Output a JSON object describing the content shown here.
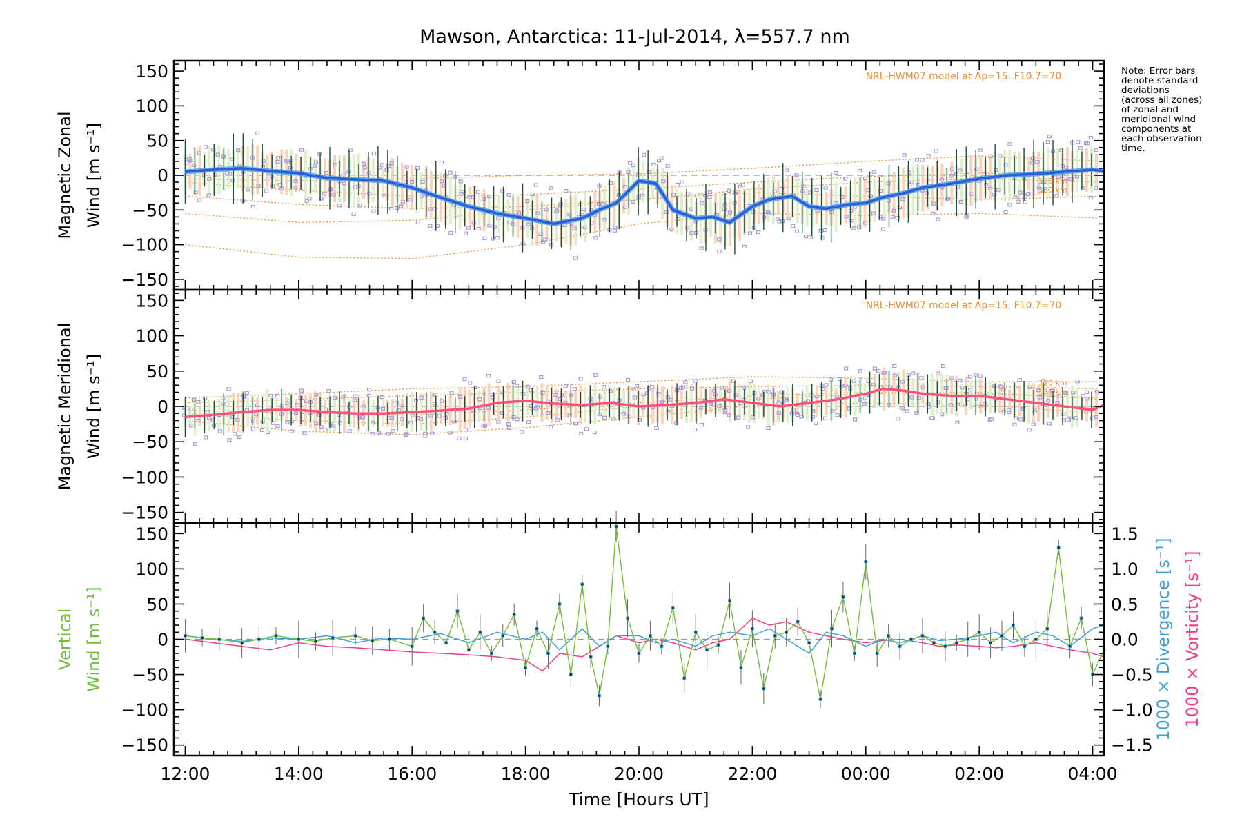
{
  "title": "Mawson, Antarctica: 11-Jul-2014, λ=557.7 nm",
  "note_lines": [
    "Note: Error bars",
    "denote standard",
    "deviations",
    "(across all zones)",
    "of zonal and",
    "meridional wind",
    "components at",
    "each observation",
    "time."
  ],
  "colors": {
    "zonal_line": "#2f5bd9",
    "zonal_light": "#4aa3e8",
    "meridional_line": "#ff4f7b",
    "vertical_line": "#6fbf3a",
    "divergence": "#3fa0d6",
    "vorticity": "#ef3f86",
    "model": "#f08a2a",
    "zone_points": "#a99ad8",
    "error_bar": "#1a4f3a"
  },
  "chart_data": [
    {
      "type": "line",
      "panel": "zonal",
      "ylabel_lines": [
        "Magnetic Zonal",
        "Wind [m s⁻¹]"
      ],
      "ylim": [
        -165,
        165
      ],
      "yticks": [
        -150,
        -100,
        -50,
        0,
        50,
        100,
        150
      ],
      "xlim": [
        11.8,
        28.2
      ],
      "annotation": "NRL-HWM07 model at Ap=15, F10.7=70",
      "model_labels": [
        "120 km",
        "130 km"
      ],
      "series": [
        {
          "x": [
            12,
            12.5,
            13,
            13.5,
            14,
            14.5,
            15,
            15.5,
            16,
            16.5,
            17,
            17.5,
            18,
            18.5,
            19,
            19.3,
            19.6,
            20,
            20.3,
            20.6,
            21,
            21.3,
            21.6,
            22,
            22.3,
            22.7,
            23,
            23.3,
            23.7,
            24,
            24.3,
            24.7,
            25,
            25.5,
            26,
            26.5,
            27,
            27.5,
            28,
            28.2
          ],
          "values": [
            5,
            8,
            10,
            6,
            3,
            -4,
            -6,
            -8,
            -18,
            -32,
            -45,
            -55,
            -62,
            -70,
            -62,
            -50,
            -40,
            -8,
            -12,
            -50,
            -62,
            -60,
            -68,
            -45,
            -35,
            -30,
            -45,
            -48,
            -42,
            -40,
            -32,
            -25,
            -18,
            -12,
            -5,
            0,
            2,
            5,
            8,
            6
          ]
        }
      ],
      "models": [
        {
          "x": [
            12,
            14,
            16,
            18,
            20,
            22,
            24,
            26,
            28.2
          ],
          "values": [
            -30,
            -42,
            -48,
            -45,
            -35,
            -20,
            -10,
            -5,
            -10
          ]
        },
        {
          "x": [
            12,
            14,
            16,
            18,
            20,
            22,
            24,
            26,
            28.2
          ],
          "values": [
            -10,
            -22,
            -30,
            -28,
            -20,
            -10,
            -2,
            3,
            0
          ]
        },
        {
          "x": [
            12,
            14,
            16,
            18,
            20,
            22,
            24,
            26,
            28.2
          ],
          "values": [
            -100,
            -118,
            -120,
            -100,
            -70,
            -55,
            -58,
            -55,
            -62
          ]
        },
        {
          "x": [
            12,
            14,
            16,
            18,
            20,
            22,
            24,
            26,
            28.2
          ],
          "values": [
            -55,
            -68,
            -65,
            -50,
            -35,
            -25,
            -30,
            -35,
            -30
          ]
        },
        {
          "x": [
            12,
            14,
            16,
            18,
            20,
            22,
            24,
            26,
            28.2
          ],
          "values": [
            -5,
            -8,
            -5,
            0,
            2,
            10,
            20,
            28,
            20
          ]
        }
      ]
    },
    {
      "type": "line",
      "panel": "meridional",
      "ylabel_lines": [
        "Magnetic Meridional",
        "Wind [m s⁻¹]"
      ],
      "ylim": [
        -165,
        165
      ],
      "yticks": [
        -150,
        -100,
        -50,
        0,
        50,
        100,
        150
      ],
      "xlim": [
        11.8,
        28.2
      ],
      "annotation": "NRL-HWM07 model at Ap=15, F10.7=70",
      "model_labels": [
        "120 km",
        "130 km"
      ],
      "series": [
        {
          "x": [
            12,
            12.5,
            13,
            13.5,
            14,
            14.5,
            15,
            15.5,
            16,
            16.5,
            17,
            17.5,
            18,
            18.5,
            19,
            19.5,
            20,
            20.5,
            21,
            21.5,
            22,
            22.5,
            23,
            23.5,
            24,
            24.3,
            24.7,
            25,
            25.5,
            26,
            26.5,
            27,
            27.5,
            28,
            28.2
          ],
          "values": [
            -15,
            -12,
            -8,
            -5,
            -5,
            -8,
            -10,
            -10,
            -8,
            -6,
            -3,
            5,
            8,
            4,
            2,
            5,
            0,
            2,
            5,
            10,
            5,
            0,
            5,
            10,
            18,
            25,
            22,
            18,
            15,
            15,
            10,
            5,
            0,
            -5,
            2
          ]
        }
      ],
      "models": [
        {
          "x": [
            12,
            14,
            16,
            18,
            20,
            22,
            24,
            26,
            28.2
          ],
          "values": [
            12,
            18,
            25,
            28,
            35,
            42,
            40,
            35,
            35
          ]
        },
        {
          "x": [
            12,
            14,
            16,
            18,
            20,
            22,
            24,
            26,
            28.2
          ],
          "values": [
            5,
            10,
            15,
            20,
            25,
            28,
            30,
            28,
            25
          ]
        },
        {
          "x": [
            12,
            14,
            16,
            18,
            20,
            22,
            24,
            26,
            28.2
          ],
          "values": [
            -20,
            -35,
            -40,
            -30,
            -15,
            0,
            5,
            2,
            -10
          ]
        },
        {
          "x": [
            12,
            14,
            16,
            18,
            20,
            22,
            24,
            26,
            28.2
          ],
          "values": [
            -5,
            -10,
            -12,
            -5,
            5,
            15,
            20,
            18,
            12
          ]
        },
        {
          "x": [
            12,
            14,
            16,
            18,
            20,
            22,
            24,
            26,
            28.2
          ],
          "values": [
            -10,
            -20,
            -25,
            -15,
            0,
            10,
            18,
            20,
            10
          ]
        }
      ]
    },
    {
      "type": "line",
      "panel": "vertical",
      "ylabel_lines": [
        "Vertical",
        "Wind [m s⁻¹]"
      ],
      "ylim": [
        -165,
        165
      ],
      "yticks": [
        -150,
        -100,
        -50,
        0,
        50,
        100,
        150
      ],
      "xlim": [
        11.8,
        28.2
      ],
      "xticks": [
        12,
        14,
        16,
        18,
        20,
        22,
        24,
        26,
        28
      ],
      "xticklabels": [
        "12:00",
        "14:00",
        "16:00",
        "18:00",
        "20:00",
        "22:00",
        "00:00",
        "02:00",
        "04:00"
      ],
      "xlabel": "Time [Hours UT]",
      "y2lim": [
        -1.65,
        1.65
      ],
      "y2ticks": [
        -1.5,
        -1.0,
        -0.5,
        0.0,
        0.5,
        1.0,
        1.5
      ],
      "y2ticklabels": [
        "−1.5",
        "−1.0",
        "−0.5",
        "0.0",
        "0.5",
        "1.0",
        "1.5"
      ],
      "y2labels": [
        "1000 × Divergence [s⁻¹]",
        "1000 × Vorticity [s⁻¹]"
      ],
      "series": [
        {
          "name": "Vertical Wind",
          "axis": "left",
          "x": [
            12,
            12.3,
            12.6,
            13,
            13.3,
            13.6,
            14,
            14.3,
            14.6,
            15,
            15.3,
            15.6,
            16,
            16.2,
            16.4,
            16.6,
            16.8,
            17,
            17.2,
            17.4,
            17.6,
            17.8,
            18,
            18.2,
            18.4,
            18.6,
            18.8,
            19,
            19.15,
            19.3,
            19.45,
            19.6,
            19.8,
            20,
            20.2,
            20.4,
            20.6,
            20.8,
            21,
            21.2,
            21.4,
            21.6,
            21.8,
            22,
            22.2,
            22.4,
            22.6,
            22.8,
            23,
            23.2,
            23.4,
            23.6,
            23.8,
            24,
            24.2,
            24.4,
            24.6,
            24.8,
            25,
            25.2,
            25.4,
            25.6,
            25.8,
            26,
            26.2,
            26.4,
            26.6,
            26.8,
            27,
            27.2,
            27.4,
            27.6,
            27.8,
            28,
            28.2
          ],
          "values": [
            5,
            2,
            0,
            -5,
            0,
            5,
            0,
            -3,
            2,
            5,
            -2,
            0,
            -10,
            30,
            10,
            -5,
            40,
            -15,
            10,
            -20,
            5,
            35,
            -40,
            15,
            -20,
            50,
            -50,
            78,
            -25,
            -80,
            -10,
            160,
            30,
            -20,
            5,
            -10,
            45,
            -55,
            10,
            -15,
            -8,
            55,
            -40,
            15,
            -70,
            5,
            10,
            25,
            -5,
            -85,
            15,
            60,
            -20,
            110,
            -20,
            5,
            -10,
            0,
            5,
            -5,
            -10,
            -5,
            0,
            10,
            -5,
            5,
            20,
            -10,
            0,
            15,
            130,
            -10,
            30,
            -50,
            -15
          ]
        },
        {
          "name": "Divergence",
          "axis": "right",
          "x": [
            12,
            12.5,
            13,
            13.5,
            14,
            14.5,
            15,
            15.5,
            16,
            16.5,
            17,
            17.5,
            18,
            18.3,
            18.6,
            19,
            19.3,
            19.6,
            20,
            20.3,
            20.6,
            21,
            21.3,
            21.6,
            22,
            22.3,
            22.6,
            23,
            23.3,
            23.6,
            24,
            24.3,
            24.6,
            25,
            25.3,
            25.6,
            26,
            26.3,
            26.6,
            27,
            27.3,
            27.6,
            28,
            28.2
          ],
          "values": [
            0.05,
            0.0,
            -0.03,
            0.02,
            0.0,
            0.05,
            -0.05,
            0.02,
            0.0,
            0.08,
            -0.05,
            0.1,
            0.0,
            0.1,
            -0.15,
            0.15,
            -0.1,
            0.05,
            0.05,
            -0.05,
            0.0,
            -0.1,
            0.05,
            0.1,
            0.05,
            0.15,
            0.0,
            -0.2,
            0.1,
            0.05,
            -0.1,
            0.0,
            -0.05,
            0.05,
            -0.02,
            0.0,
            0.05,
            0.1,
            -0.05,
            0.1,
            0.05,
            -0.1,
            0.15,
            0.2
          ]
        },
        {
          "name": "Vorticity",
          "axis": "right",
          "x": [
            12,
            12.5,
            13,
            13.5,
            14,
            14.5,
            15,
            15.5,
            16,
            16.5,
            17,
            17.5,
            18,
            18.3,
            18.6,
            19,
            19.3,
            19.6,
            20,
            20.3,
            20.6,
            21,
            21.3,
            21.6,
            22,
            22.3,
            22.6,
            23,
            23.3,
            23.6,
            24,
            24.3,
            24.6,
            25,
            25.3,
            25.6,
            26,
            26.3,
            26.6,
            27,
            27.3,
            27.6,
            28,
            28.2
          ],
          "values": [
            0.0,
            -0.05,
            -0.1,
            -0.15,
            -0.05,
            -0.1,
            -0.12,
            -0.15,
            -0.18,
            -0.2,
            -0.22,
            -0.25,
            -0.3,
            -0.45,
            -0.2,
            -0.25,
            -0.1,
            0.05,
            -0.05,
            0.0,
            -0.05,
            -0.15,
            -0.05,
            0.0,
            0.3,
            0.2,
            0.25,
            0.1,
            0.05,
            0.0,
            -0.05,
            -0.02,
            0.0,
            -0.05,
            -0.1,
            -0.08,
            -0.1,
            -0.12,
            -0.1,
            -0.05,
            -0.1,
            -0.15,
            -0.2,
            -0.25
          ]
        }
      ]
    }
  ]
}
